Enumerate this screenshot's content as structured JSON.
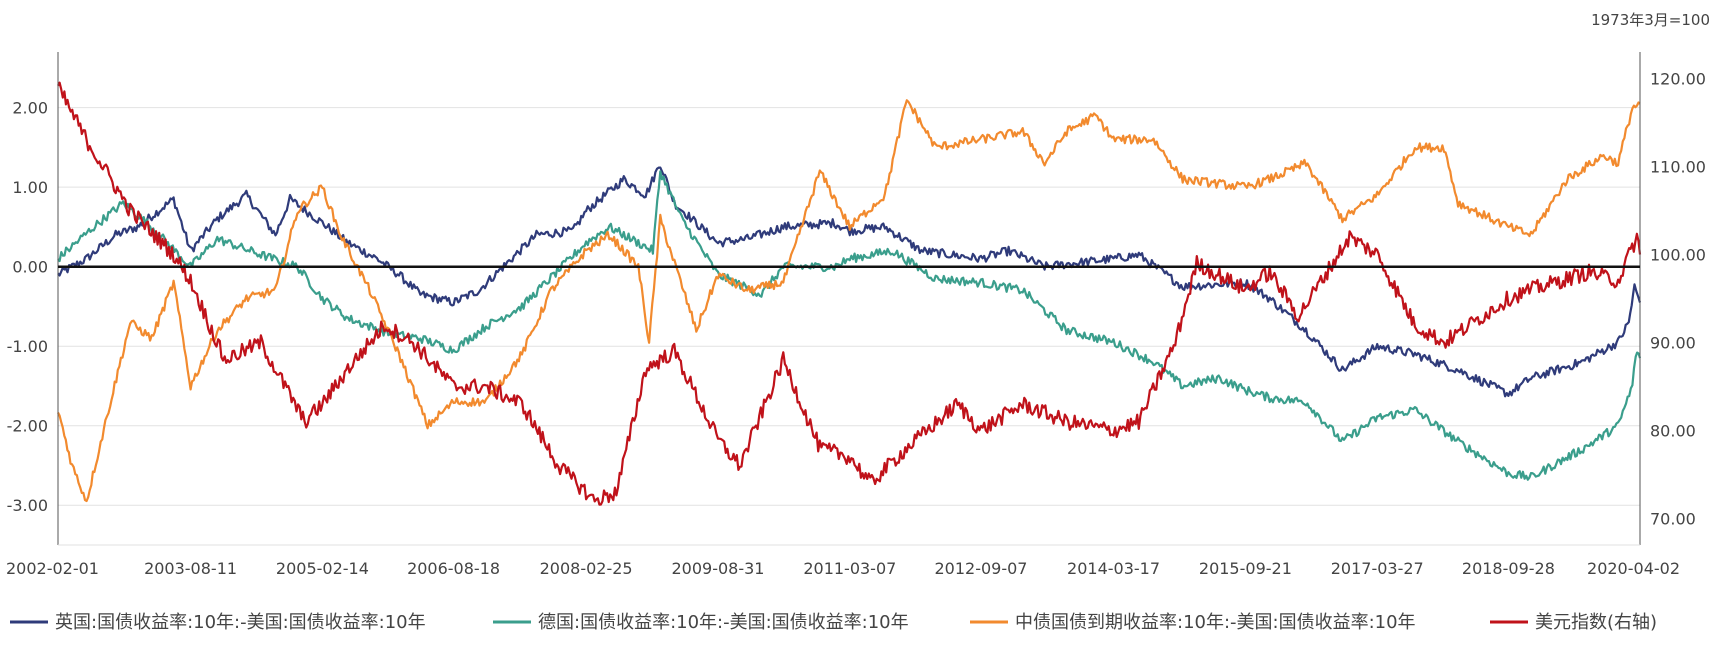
{
  "chart_data": {
    "type": "line",
    "note_top_right": "1973年3月=100",
    "x_tick_labels": [
      "2002-02-01",
      "2003-08-11",
      "2005-02-14",
      "2006-08-18",
      "2008-02-25",
      "2009-08-31",
      "2011-03-07",
      "2012-09-07",
      "2014-03-17",
      "2015-09-21",
      "2017-03-27",
      "2018-09-28",
      "2020-04-02"
    ],
    "x_range": [
      "2002-02-01",
      "2020-04-02"
    ],
    "y_left": {
      "ticks": [
        "2.00",
        "1.00",
        "0.00",
        "-1.00",
        "-2.00",
        "-3.00"
      ],
      "range": [
        -3.5,
        2.7
      ]
    },
    "y_right": {
      "ticks": [
        "120.00",
        "110.00",
        "100.00",
        "90.00",
        "80.00",
        "70.00"
      ],
      "range": [
        67,
        123
      ]
    },
    "zero_line": true,
    "grid": true,
    "legend_position": "bottom",
    "series": [
      {
        "name": "英国:国债收益率:10年:-美国:国债收益率:10年",
        "axis": "left",
        "color": "#2f3b7a",
        "points": [
          [
            "2002-02-01",
            -0.1
          ],
          [
            "2002-06-01",
            0.1
          ],
          [
            "2002-10-01",
            0.4
          ],
          [
            "2003-01-01",
            0.5
          ],
          [
            "2003-06-01",
            0.85
          ],
          [
            "2003-08-11",
            0.2
          ],
          [
            "2003-12-01",
            0.6
          ],
          [
            "2004-04-01",
            0.9
          ],
          [
            "2004-08-01",
            0.4
          ],
          [
            "2004-10-01",
            0.85
          ],
          [
            "2005-02-14",
            0.55
          ],
          [
            "2005-06-01",
            0.3
          ],
          [
            "2005-10-01",
            0.1
          ],
          [
            "2006-01-01",
            -0.1
          ],
          [
            "2006-04-01",
            -0.35
          ],
          [
            "2006-08-18",
            -0.45
          ],
          [
            "2006-12-01",
            -0.3
          ],
          [
            "2007-04-01",
            0.05
          ],
          [
            "2007-08-01",
            0.4
          ],
          [
            "2008-01-01",
            0.45
          ],
          [
            "2008-02-25",
            0.7
          ],
          [
            "2008-08-01",
            1.1
          ],
          [
            "2008-11-01",
            0.9
          ],
          [
            "2009-01-01",
            1.3
          ],
          [
            "2009-03-01",
            0.8
          ],
          [
            "2009-08-31",
            0.3
          ],
          [
            "2010-01-01",
            0.35
          ],
          [
            "2010-06-01",
            0.5
          ],
          [
            "2011-01-01",
            0.55
          ],
          [
            "2011-03-07",
            0.45
          ],
          [
            "2011-08-01",
            0.5
          ],
          [
            "2012-01-01",
            0.2
          ],
          [
            "2012-09-07",
            0.1
          ],
          [
            "2013-01-01",
            0.2
          ],
          [
            "2013-06-01",
            0.0
          ],
          [
            "2014-03-17",
            0.1
          ],
          [
            "2014-07-01",
            0.15
          ],
          [
            "2015-01-01",
            -0.25
          ],
          [
            "2015-09-21",
            -0.2
          ],
          [
            "2016-01-01",
            -0.4
          ],
          [
            "2016-06-01",
            -0.8
          ],
          [
            "2016-11-01",
            -1.3
          ],
          [
            "2017-03-27",
            -1.0
          ],
          [
            "2017-09-01",
            -1.1
          ],
          [
            "2018-03-01",
            -1.3
          ],
          [
            "2018-09-28",
            -1.6
          ],
          [
            "2019-01-01",
            -1.4
          ],
          [
            "2019-08-01",
            -1.2
          ],
          [
            "2020-01-01",
            -0.95
          ],
          [
            "2020-02-15",
            -0.7
          ],
          [
            "2020-03-10",
            -0.25
          ],
          [
            "2020-04-02",
            -0.45
          ]
        ]
      },
      {
        "name": "德国:国债收益率:10年:-美国:国债收益率:10年",
        "axis": "left",
        "color": "#3a9e8c",
        "points": [
          [
            "2002-02-01",
            0.1
          ],
          [
            "2002-07-01",
            0.5
          ],
          [
            "2002-11-01",
            0.8
          ],
          [
            "2003-03-01",
            0.5
          ],
          [
            "2003-08-11",
            0.0
          ],
          [
            "2003-12-01",
            0.35
          ],
          [
            "2004-06-01",
            0.15
          ],
          [
            "2004-11-01",
            0.0
          ],
          [
            "2005-02-14",
            -0.4
          ],
          [
            "2005-06-01",
            -0.65
          ],
          [
            "2005-12-01",
            -0.85
          ],
          [
            "2006-04-01",
            -0.9
          ],
          [
            "2006-08-18",
            -1.05
          ],
          [
            "2007-01-01",
            -0.75
          ],
          [
            "2007-06-01",
            -0.5
          ],
          [
            "2008-02-25",
            0.3
          ],
          [
            "2008-06-01",
            0.5
          ],
          [
            "2008-12-01",
            0.2
          ],
          [
            "2009-01-01",
            1.2
          ],
          [
            "2009-04-01",
            0.6
          ],
          [
            "2009-08-31",
            -0.1
          ],
          [
            "2010-03-01",
            -0.35
          ],
          [
            "2010-06-01",
            0.0
          ],
          [
            "2011-01-01",
            0.0
          ],
          [
            "2011-03-07",
            0.1
          ],
          [
            "2011-09-01",
            0.2
          ],
          [
            "2012-03-01",
            -0.15
          ],
          [
            "2012-09-07",
            -0.2
          ],
          [
            "2013-03-01",
            -0.3
          ],
          [
            "2013-09-01",
            -0.8
          ],
          [
            "2014-03-17",
            -0.95
          ],
          [
            "2014-09-01",
            -1.2
          ],
          [
            "2015-01-01",
            -1.5
          ],
          [
            "2015-06-01",
            -1.4
          ],
          [
            "2015-09-21",
            -1.55
          ],
          [
            "2016-01-01",
            -1.65
          ],
          [
            "2016-06-01",
            -1.7
          ],
          [
            "2016-11-01",
            -2.2
          ],
          [
            "2017-03-27",
            -1.9
          ],
          [
            "2017-09-01",
            -1.8
          ],
          [
            "2018-03-01",
            -2.2
          ],
          [
            "2018-09-28",
            -2.6
          ],
          [
            "2019-01-01",
            -2.65
          ],
          [
            "2019-08-01",
            -2.3
          ],
          [
            "2020-01-01",
            -2.0
          ],
          [
            "2020-03-01",
            -1.5
          ],
          [
            "2020-03-15",
            -1.1
          ],
          [
            "2020-04-02",
            -1.15
          ]
        ]
      },
      {
        "name": "中债国债到期收益率:10年:-美国:国债收益率:10年",
        "axis": "left",
        "color": "#f28a2e",
        "points": [
          [
            "2002-02-01",
            -1.8
          ],
          [
            "2002-04-01",
            -2.5
          ],
          [
            "2002-06-01",
            -2.95
          ],
          [
            "2002-09-01",
            -1.8
          ],
          [
            "2002-12-01",
            -0.7
          ],
          [
            "2003-03-01",
            -0.9
          ],
          [
            "2003-06-01",
            -0.2
          ],
          [
            "2003-08-11",
            -1.5
          ],
          [
            "2003-12-01",
            -0.8
          ],
          [
            "2004-04-01",
            -0.4
          ],
          [
            "2004-08-01",
            -0.3
          ],
          [
            "2004-11-01",
            0.7
          ],
          [
            "2005-02-14",
            1.0
          ],
          [
            "2005-05-01",
            0.4
          ],
          [
            "2005-09-01",
            -0.3
          ],
          [
            "2006-01-01",
            -1.1
          ],
          [
            "2006-05-01",
            -2.0
          ],
          [
            "2006-08-18",
            -1.7
          ],
          [
            "2007-01-01",
            -1.7
          ],
          [
            "2007-06-01",
            -1.1
          ],
          [
            "2007-10-01",
            -0.3
          ],
          [
            "2008-02-25",
            0.2
          ],
          [
            "2008-06-01",
            0.4
          ],
          [
            "2008-10-01",
            0.0
          ],
          [
            "2008-11-15",
            -0.95
          ],
          [
            "2009-01-01",
            0.6
          ],
          [
            "2009-06-01",
            -0.8
          ],
          [
            "2009-08-31",
            -0.1
          ],
          [
            "2010-01-01",
            -0.3
          ],
          [
            "2010-06-01",
            -0.2
          ],
          [
            "2010-11-01",
            1.2
          ],
          [
            "2011-03-07",
            0.5
          ],
          [
            "2011-08-01",
            0.9
          ],
          [
            "2011-11-01",
            2.1
          ],
          [
            "2012-03-01",
            1.5
          ],
          [
            "2012-09-07",
            1.6
          ],
          [
            "2013-03-01",
            1.7
          ],
          [
            "2013-06-01",
            1.3
          ],
          [
            "2013-09-01",
            1.7
          ],
          [
            "2014-01-01",
            1.9
          ],
          [
            "2014-03-17",
            1.6
          ],
          [
            "2014-09-01",
            1.6
          ],
          [
            "2015-01-01",
            1.1
          ],
          [
            "2015-09-21",
            1.0
          ],
          [
            "2016-01-01",
            1.1
          ],
          [
            "2016-06-01",
            1.3
          ],
          [
            "2016-11-01",
            0.6
          ],
          [
            "2017-03-27",
            0.9
          ],
          [
            "2017-09-01",
            1.5
          ],
          [
            "2018-01-01",
            1.5
          ],
          [
            "2018-03-01",
            0.8
          ],
          [
            "2018-09-28",
            0.5
          ],
          [
            "2019-01-01",
            0.4
          ],
          [
            "2019-06-01",
            1.1
          ],
          [
            "2019-11-01",
            1.4
          ],
          [
            "2020-01-01",
            1.3
          ],
          [
            "2020-03-01",
            2.0
          ],
          [
            "2020-04-02",
            2.05
          ]
        ]
      },
      {
        "name": "美元指数(右轴)",
        "axis": "right",
        "color": "#c0121a",
        "points": [
          [
            "2002-02-01",
            119
          ],
          [
            "2002-06-01",
            113
          ],
          [
            "2002-12-01",
            105
          ],
          [
            "2003-06-01",
            100
          ],
          [
            "2003-08-11",
            97
          ],
          [
            "2004-01-01",
            88
          ],
          [
            "2004-06-01",
            90
          ],
          [
            "2004-12-01",
            81
          ],
          [
            "2005-02-14",
            83
          ],
          [
            "2005-06-01",
            87
          ],
          [
            "2005-11-01",
            92
          ],
          [
            "2006-03-01",
            90
          ],
          [
            "2006-08-18",
            85
          ],
          [
            "2007-01-01",
            85
          ],
          [
            "2007-06-01",
            83
          ],
          [
            "2007-11-01",
            76
          ],
          [
            "2008-02-25",
            73
          ],
          [
            "2008-04-01",
            72
          ],
          [
            "2008-07-01",
            73
          ],
          [
            "2008-11-01",
            87
          ],
          [
            "2009-03-01",
            89
          ],
          [
            "2009-08-31",
            79
          ],
          [
            "2009-12-01",
            76
          ],
          [
            "2010-06-01",
            88
          ],
          [
            "2010-11-01",
            78
          ],
          [
            "2011-03-07",
            77
          ],
          [
            "2011-06-01",
            74
          ],
          [
            "2011-11-01",
            78
          ],
          [
            "2012-06-01",
            83
          ],
          [
            "2012-09-07",
            80
          ],
          [
            "2013-03-01",
            83
          ],
          [
            "2013-09-01",
            81
          ],
          [
            "2014-03-17",
            80
          ],
          [
            "2014-07-01",
            81
          ],
          [
            "2014-12-01",
            90
          ],
          [
            "2015-03-01",
            99
          ],
          [
            "2015-09-21",
            96
          ],
          [
            "2016-01-01",
            98
          ],
          [
            "2016-05-01",
            93
          ],
          [
            "2016-12-01",
            102
          ],
          [
            "2017-03-27",
            100
          ],
          [
            "2017-09-01",
            92
          ],
          [
            "2018-01-01",
            90
          ],
          [
            "2018-09-28",
            95
          ],
          [
            "2019-01-01",
            96
          ],
          [
            "2019-09-01",
            98
          ],
          [
            "2020-01-01",
            97
          ],
          [
            "2020-03-20",
            102
          ],
          [
            "2020-04-02",
            100
          ]
        ]
      }
    ]
  }
}
